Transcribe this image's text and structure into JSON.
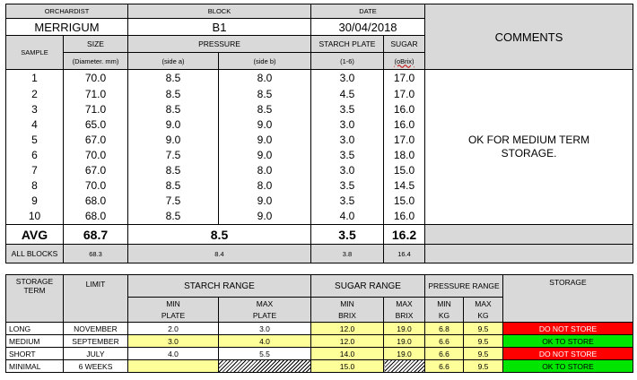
{
  "report": {
    "headers": {
      "orchardist": "ORCHARDIST",
      "block": "BLOCK",
      "date": "DATE",
      "comments": "COMMENTS",
      "sample": "SAMPLE",
      "size": "SIZE",
      "pressure": "PRESSURE",
      "starch_plate": "STARCH PLATE",
      "sugar": "SUGAR",
      "size_unit": "(Diameter. mm)",
      "side_a": "(side a)",
      "side_b": "(side b)",
      "starch_unit": "(1-6)",
      "sugar_unit": "(oBrix)"
    },
    "orchardist": "MERRIGUM",
    "block": "B1",
    "date": "30/04/2018",
    "samples": [
      {
        "n": "1",
        "size": "70.0",
        "a": "8.5",
        "b": "8.0",
        "starch": "3.0",
        "sugar": "17.0"
      },
      {
        "n": "2",
        "size": "71.0",
        "a": "8.5",
        "b": "8.5",
        "starch": "4.5",
        "sugar": "17.0"
      },
      {
        "n": "3",
        "size": "71.0",
        "a": "8.5",
        "b": "8.5",
        "starch": "3.5",
        "sugar": "16.0"
      },
      {
        "n": "4",
        "size": "65.0",
        "a": "9.0",
        "b": "9.0",
        "starch": "3.0",
        "sugar": "16.0"
      },
      {
        "n": "5",
        "size": "67.0",
        "a": "9.0",
        "b": "9.0",
        "starch": "3.0",
        "sugar": "17.0"
      },
      {
        "n": "6",
        "size": "70.0",
        "a": "7.5",
        "b": "9.0",
        "starch": "3.5",
        "sugar": "18.0"
      },
      {
        "n": "7",
        "size": "67.0",
        "a": "8.5",
        "b": "8.0",
        "starch": "3.0",
        "sugar": "15.0"
      },
      {
        "n": "8",
        "size": "70.0",
        "a": "8.5",
        "b": "8.0",
        "starch": "3.5",
        "sugar": "14.5"
      },
      {
        "n": "9",
        "size": "68.0",
        "a": "7.5",
        "b": "9.0",
        "starch": "3.5",
        "sugar": "15.0"
      },
      {
        "n": "10",
        "size": "68.0",
        "a": "8.5",
        "b": "9.0",
        "starch": "4.0",
        "sugar": "16.0"
      }
    ],
    "comment_text": "OK FOR MEDIUM TERM STORAGE.",
    "avg": {
      "label": "AVG",
      "size": "68.7",
      "pressure": "8.5",
      "starch": "3.5",
      "sugar": "16.2"
    },
    "all_blocks": {
      "label": "ALL BLOCKS",
      "size": "68.3",
      "pressure": "8.4",
      "starch": "3.8",
      "sugar": "16.4"
    }
  },
  "storage": {
    "headers": {
      "term": "STORAGE TERM",
      "limit": "LIMIT",
      "starch_range": "STARCH RANGE",
      "sugar_range": "SUGAR RANGE",
      "pressure_range": "PRESSURE RANGE",
      "storage": "STORAGE",
      "min": "MIN",
      "max": "MAX",
      "plate": "PLATE",
      "brix": "BRIX",
      "kg": "KG"
    },
    "rows": [
      {
        "term": "LONG",
        "limit": "NOVEMBER",
        "starch_min": "2.0",
        "starch_max": "3.0",
        "sugar_min": "12.0",
        "sugar_max": "19.0",
        "p_min": "6.8",
        "p_max": "9.5",
        "status": "DO NOT STORE"
      },
      {
        "term": "MEDIUM",
        "limit": "SEPTEMBER",
        "starch_min": "3.0",
        "starch_max": "4.0",
        "sugar_min": "12.0",
        "sugar_max": "19.0",
        "p_min": "6.6",
        "p_max": "9.5",
        "status": "OK TO STORE"
      },
      {
        "term": "SHORT",
        "limit": "JULY",
        "starch_min": "4.0",
        "starch_max": "5.5",
        "sugar_min": "14.0",
        "sugar_max": "19.0",
        "p_min": "6.6",
        "p_max": "9.5",
        "status": "DO NOT STORE"
      },
      {
        "term": "MINIMAL",
        "limit": "6 WEEKS",
        "starch_min": "",
        "starch_max": "",
        "sugar_min": "15.0",
        "sugar_max": "",
        "p_min": "6.6",
        "p_max": "9.5",
        "status": "OK TO STORE"
      }
    ],
    "status_colors": {
      "do_not_store": "#ff0000",
      "ok_to_store": "#00e600"
    },
    "highlight_color": "#ffff99"
  }
}
